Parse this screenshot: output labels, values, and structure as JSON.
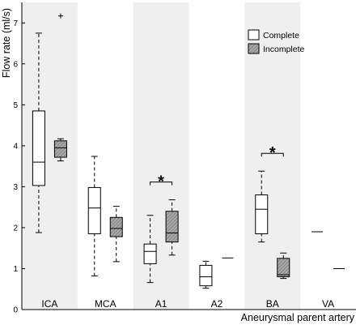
{
  "chart_data": {
    "type": "boxplot",
    "ylabel": "Flow rate (ml/s)",
    "xlabel": "Aneurysmal parent artery",
    "ylim": [
      0,
      7.5
    ],
    "yticks": [
      0,
      1,
      2,
      3,
      4,
      5,
      6,
      7
    ],
    "categories": [
      "ICA",
      "MCA",
      "A1",
      "A2",
      "BA",
      "VA"
    ],
    "shaded_categories": [
      "ICA",
      "A1",
      "BA"
    ],
    "series": [
      {
        "name": "Complete",
        "pattern": "none",
        "boxes": [
          {
            "category": "ICA",
            "min": 1.88,
            "q1": 3.03,
            "median": 3.6,
            "q3": 4.85,
            "max": 6.75,
            "outliers": []
          },
          {
            "category": "MCA",
            "min": 0.82,
            "q1": 1.85,
            "median": 2.48,
            "q3": 2.98,
            "max": 3.74,
            "outliers": []
          },
          {
            "category": "A1",
            "min": 0.66,
            "q1": 1.12,
            "median": 1.42,
            "q3": 1.6,
            "max": 2.3,
            "outliers": []
          },
          {
            "category": "A2",
            "min": 0.52,
            "q1": 0.58,
            "median": 0.8,
            "q3": 1.08,
            "max": 1.18,
            "outliers": []
          },
          {
            "category": "BA",
            "min": 1.65,
            "q1": 1.85,
            "median": 2.45,
            "q3": 2.8,
            "max": 3.38,
            "outliers": []
          },
          {
            "category": "VA",
            "single": 1.9
          }
        ]
      },
      {
        "name": "Incomplete",
        "pattern": "hatched",
        "boxes": [
          {
            "category": "ICA",
            "min": 3.63,
            "q1": 3.72,
            "median": 3.95,
            "q3": 4.12,
            "max": 4.17,
            "outliers": [
              7.17
            ]
          },
          {
            "category": "MCA",
            "min": 1.17,
            "q1": 1.78,
            "median": 1.98,
            "q3": 2.25,
            "max": 2.52,
            "outliers": []
          },
          {
            "category": "A1",
            "min": 1.33,
            "q1": 1.65,
            "median": 1.87,
            "q3": 2.4,
            "max": 2.68,
            "outliers": []
          },
          {
            "category": "A2",
            "single": 1.26
          },
          {
            "category": "BA",
            "min": 0.76,
            "q1": 0.8,
            "median": 0.85,
            "q3": 1.25,
            "max": 1.38,
            "outliers": []
          },
          {
            "category": "VA",
            "single": 1.0
          }
        ]
      }
    ],
    "significance": [
      {
        "category": "A1",
        "label": "*"
      },
      {
        "category": "BA",
        "label": "*"
      }
    ],
    "legend": {
      "position": "top-right",
      "entries": [
        "Complete",
        "Incomplete"
      ]
    }
  },
  "colors": {
    "shade": "#efefef",
    "box_face": "#ffffff",
    "hatch_face": "#a9a9a9",
    "line": "#000000"
  }
}
